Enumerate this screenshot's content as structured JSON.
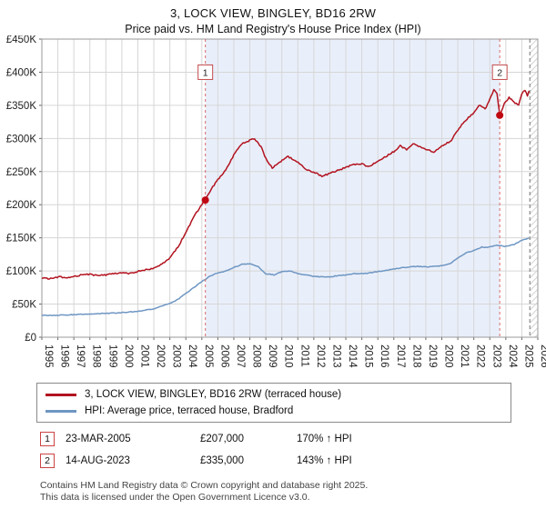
{
  "title": "3, LOCK VIEW, BINGLEY, BD16 2RW",
  "subtitle": "Price paid vs. HM Land Registry's House Price Index (HPI)",
  "legend": {
    "items": [
      {
        "label": "3, LOCK VIEW, BINGLEY, BD16 2RW (terraced house)",
        "color": "#b2131f"
      },
      {
        "label": "HPI: Average price, terraced house, Bradford",
        "color": "#6e96c3"
      }
    ]
  },
  "annotations": [
    {
      "num": "1",
      "date": "23-MAR-2005",
      "price": "£207,000",
      "hpi": "170% ↑ HPI"
    },
    {
      "num": "2",
      "date": "14-AUG-2023",
      "price": "£335,000",
      "hpi": "143% ↑ HPI"
    }
  ],
  "footer": {
    "line1": "Contains HM Land Registry data © Crown copyright and database right 2025.",
    "line2": "This data is licensed under the Open Government Licence v3.0."
  },
  "chart_data": {
    "type": "line",
    "title": "Price paid vs. HPI",
    "x_range": [
      1995,
      2026
    ],
    "y_max_thousands": 450,
    "value_unit": "GBP thousands",
    "grid": true,
    "legend_position": "bottom",
    "y_ticks": [
      {
        "v": 0,
        "label": "£0"
      },
      {
        "v": 50,
        "label": "£50K"
      },
      {
        "v": 100,
        "label": "£100K"
      },
      {
        "v": 150,
        "label": "£150K"
      },
      {
        "v": 200,
        "label": "£200K"
      },
      {
        "v": 250,
        "label": "£250K"
      },
      {
        "v": 300,
        "label": "£300K"
      },
      {
        "v": 350,
        "label": "£350K"
      },
      {
        "v": 400,
        "label": "£400K"
      },
      {
        "v": 450,
        "label": "£450K"
      }
    ],
    "x_ticks": [
      1995,
      1996,
      1997,
      1998,
      1999,
      2000,
      2001,
      2002,
      2003,
      2004,
      2005,
      2006,
      2007,
      2008,
      2009,
      2010,
      2011,
      2012,
      2013,
      2014,
      2015,
      2016,
      2017,
      2018,
      2019,
      2020,
      2021,
      2022,
      2023,
      2024,
      2025,
      2026
    ],
    "series": [
      {
        "name": "3, LOCK VIEW, BINGLEY, BD16 2RW (terraced house)",
        "color": "#b2131f",
        "jitter": 2.2,
        "points": [
          [
            1995.0,
            90
          ],
          [
            1995.4,
            88
          ],
          [
            1995.8,
            90
          ],
          [
            1996.2,
            91
          ],
          [
            1996.6,
            90
          ],
          [
            1997.0,
            92
          ],
          [
            1997.5,
            94
          ],
          [
            1998.0,
            95
          ],
          [
            1998.4,
            93
          ],
          [
            1999.0,
            94
          ],
          [
            1999.5,
            96
          ],
          [
            2000.0,
            97
          ],
          [
            2000.5,
            96
          ],
          [
            2001.0,
            99
          ],
          [
            2001.5,
            102
          ],
          [
            2002.0,
            104
          ],
          [
            2002.5,
            110
          ],
          [
            2003.0,
            120
          ],
          [
            2003.5,
            136
          ],
          [
            2004.0,
            158
          ],
          [
            2004.5,
            182
          ],
          [
            2005.0,
            200
          ],
          [
            2005.22,
            207
          ],
          [
            2005.6,
            224
          ],
          [
            2006.0,
            238
          ],
          [
            2006.5,
            253
          ],
          [
            2007.0,
            275
          ],
          [
            2007.5,
            292
          ],
          [
            2008.0,
            297
          ],
          [
            2008.3,
            300
          ],
          [
            2008.7,
            287
          ],
          [
            2009.0,
            270
          ],
          [
            2009.4,
            255
          ],
          [
            2009.8,
            263
          ],
          [
            2010.1,
            268
          ],
          [
            2010.4,
            273
          ],
          [
            2010.8,
            266
          ],
          [
            2011.1,
            262
          ],
          [
            2011.5,
            253
          ],
          [
            2012.0,
            249
          ],
          [
            2012.5,
            243
          ],
          [
            2013.0,
            247
          ],
          [
            2013.5,
            252
          ],
          [
            2014.0,
            256
          ],
          [
            2014.5,
            261
          ],
          [
            2015.0,
            262
          ],
          [
            2015.4,
            257
          ],
          [
            2016.0,
            266
          ],
          [
            2016.5,
            273
          ],
          [
            2017.0,
            280
          ],
          [
            2017.4,
            289
          ],
          [
            2017.8,
            283
          ],
          [
            2018.2,
            292
          ],
          [
            2018.6,
            287
          ],
          [
            2019.0,
            284
          ],
          [
            2019.5,
            279
          ],
          [
            2020.0,
            288
          ],
          [
            2020.6,
            297
          ],
          [
            2021.0,
            313
          ],
          [
            2021.5,
            328
          ],
          [
            2022.0,
            339
          ],
          [
            2022.4,
            351
          ],
          [
            2022.7,
            344
          ],
          [
            2023.0,
            359
          ],
          [
            2023.25,
            374
          ],
          [
            2023.45,
            367
          ],
          [
            2023.62,
            335
          ],
          [
            2023.9,
            352
          ],
          [
            2024.2,
            362
          ],
          [
            2024.5,
            355
          ],
          [
            2024.8,
            350
          ],
          [
            2025.0,
            368
          ],
          [
            2025.2,
            373
          ],
          [
            2025.35,
            365
          ],
          [
            2025.45,
            372
          ]
        ]
      },
      {
        "name": "HPI: Average price, terraced house, Bradford",
        "color": "#6e96c3",
        "jitter": 1.1,
        "points": [
          [
            1995.0,
            33
          ],
          [
            1996.0,
            33
          ],
          [
            1997.0,
            34
          ],
          [
            1998.0,
            35
          ],
          [
            1999.0,
            36
          ],
          [
            2000.0,
            37
          ],
          [
            2001.0,
            39
          ],
          [
            2002.0,
            43
          ],
          [
            2003.0,
            51
          ],
          [
            2003.5,
            57
          ],
          [
            2004.0,
            66
          ],
          [
            2004.5,
            75
          ],
          [
            2005.0,
            84
          ],
          [
            2005.5,
            92
          ],
          [
            2006.0,
            97
          ],
          [
            2006.5,
            100
          ],
          [
            2007.0,
            105
          ],
          [
            2007.5,
            110
          ],
          [
            2008.0,
            111
          ],
          [
            2008.5,
            107
          ],
          [
            2009.0,
            96
          ],
          [
            2009.5,
            94
          ],
          [
            2010.0,
            99
          ],
          [
            2010.5,
            100
          ],
          [
            2011.0,
            96
          ],
          [
            2011.5,
            94
          ],
          [
            2012.0,
            92
          ],
          [
            2012.5,
            91
          ],
          [
            2013.0,
            91
          ],
          [
            2013.5,
            93
          ],
          [
            2014.0,
            94
          ],
          [
            2014.5,
            96
          ],
          [
            2015.0,
            96
          ],
          [
            2015.5,
            97
          ],
          [
            2016.0,
            99
          ],
          [
            2016.5,
            101
          ],
          [
            2017.0,
            103
          ],
          [
            2017.5,
            105
          ],
          [
            2018.0,
            106
          ],
          [
            2018.5,
            107
          ],
          [
            2019.0,
            106
          ],
          [
            2019.5,
            107
          ],
          [
            2020.0,
            108
          ],
          [
            2020.6,
            112
          ],
          [
            2021.0,
            120
          ],
          [
            2021.5,
            127
          ],
          [
            2022.0,
            131
          ],
          [
            2022.5,
            136
          ],
          [
            2023.0,
            136
          ],
          [
            2023.5,
            139
          ],
          [
            2024.0,
            137
          ],
          [
            2024.5,
            140
          ],
          [
            2025.0,
            146
          ],
          [
            2025.45,
            150
          ]
        ]
      }
    ],
    "sales": [
      {
        "label": "1",
        "year": 2005.22,
        "value": 207
      },
      {
        "label": "2",
        "year": 2023.62,
        "value": 335
      }
    ],
    "shaded_region": [
      2005.22,
      2023.62
    ],
    "future_from": 2025.5,
    "marker_value": 400,
    "colors": {
      "shade": "#e9effa",
      "sale_line": "#d86a6a",
      "sale_dot": "#c00812",
      "marker_border": "#c44a4a",
      "grid": "#d6d6d6",
      "plot_border": "#9a9a9a"
    }
  }
}
